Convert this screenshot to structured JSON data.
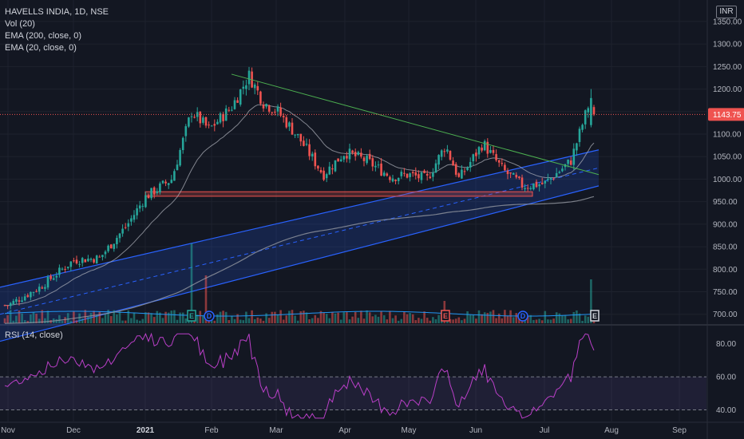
{
  "legend": {
    "symbol": "HAVELLS INDIA, 1D, NSE",
    "studies": [
      "Vol (20)",
      "EMA (200, close, 0)",
      "EMA (20, close, 0)"
    ],
    "rsi": "RSI (14, close)"
  },
  "currency": "INR",
  "colors": {
    "background": "#131722",
    "up": "#26a69a",
    "down": "#ef5350",
    "ema20": "#b2b5be",
    "ema200": "#9598a1",
    "trendline": "#4caf50",
    "channel": "#2962ff",
    "support_zone": "#ef5350",
    "rsi_line": "#b93fc7",
    "rsi_band": "#7e57c2",
    "last_price_tag": "#ef5350",
    "volume_avg": "#2196f3"
  },
  "chart_data": {
    "type": "candlestick",
    "x_labels": [
      "Nov",
      "Dec",
      "2021",
      "Feb",
      "Mar",
      "Apr",
      "May",
      "Jun",
      "Jul",
      "Aug",
      "Sep"
    ],
    "price_axis": {
      "ticks": [
        700,
        750,
        800,
        850,
        900,
        950,
        1000,
        1050,
        1100,
        1150,
        1200,
        1250,
        1300,
        1350
      ],
      "tick_labels": [
        "700.00",
        "750.00",
        "800.00",
        "850.00",
        "900.00",
        "950.00",
        "1000.00",
        "1050.00",
        "1100.00",
        "1150.00",
        "1200.00",
        "1250.00",
        "1300.00",
        "1350.00"
      ],
      "range": [
        680,
        1380
      ]
    },
    "last_price": 1143.75,
    "last_price_label": "1143.75",
    "price_anchors": [
      {
        "date": "Nov",
        "price": 720
      },
      {
        "date": "Nov mid",
        "price": 760
      },
      {
        "date": "Dec",
        "price": 820
      },
      {
        "date": "Dec mid",
        "price": 825
      },
      {
        "date": "Dec late",
        "price": 900
      },
      {
        "date": "2021",
        "price": 960
      },
      {
        "date": "Jan mid",
        "price": 1000
      },
      {
        "date": "Jan late",
        "price": 1150
      },
      {
        "date": "Feb",
        "price": 1110
      },
      {
        "date": "Feb mid",
        "price": 1160
      },
      {
        "date": "Feb 18",
        "price": 1230
      },
      {
        "date": "Feb late",
        "price": 1170
      },
      {
        "date": "Mar",
        "price": 1150
      },
      {
        "date": "Mar mid",
        "price": 1090
      },
      {
        "date": "Mar late",
        "price": 1010
      },
      {
        "date": "Apr",
        "price": 1060
      },
      {
        "date": "Apr mid",
        "price": 1040
      },
      {
        "date": "Apr late",
        "price": 1005
      },
      {
        "date": "May",
        "price": 1010
      },
      {
        "date": "May mid",
        "price": 1000
      },
      {
        "date": "May late",
        "price": 1075
      },
      {
        "date": "Jun",
        "price": 1000
      },
      {
        "date": "Jun early",
        "price": 1080
      },
      {
        "date": "Jun mid",
        "price": 1020
      },
      {
        "date": "Jun late",
        "price": 985
      },
      {
        "date": "Jul",
        "price": 990
      },
      {
        "date": "Jul mid",
        "price": 1040
      },
      {
        "date": "Jul 20",
        "price": 1180
      },
      {
        "date": "Jul 22",
        "price": 1143.75
      }
    ],
    "drawings": {
      "downtrend_line": {
        "from": {
          "date": "Feb 15",
          "price": 1233
        },
        "to": {
          "date": "Jul 28",
          "price": 1010
        }
      },
      "support_zone": {
        "from": "Jan",
        "to": "Jun late",
        "low": 962,
        "high": 972
      },
      "channel": {
        "lower_start": 640,
        "lower_end": 985,
        "upper_start": 760,
        "upper_end": 1065
      }
    },
    "events": [
      {
        "label": "E",
        "date": "Jan late"
      },
      {
        "label": "D",
        "date": "Feb"
      },
      {
        "label": "E",
        "date": "May late"
      },
      {
        "label": "D",
        "date": "Jun late"
      },
      {
        "label": "E",
        "date": "Jul 22"
      }
    ],
    "rsi": {
      "ticks": [
        40,
        60,
        80
      ],
      "tick_labels": [
        "40.00",
        "60.00",
        "80.00"
      ],
      "range": [
        33,
        90
      ],
      "band": [
        40,
        60
      ]
    }
  }
}
